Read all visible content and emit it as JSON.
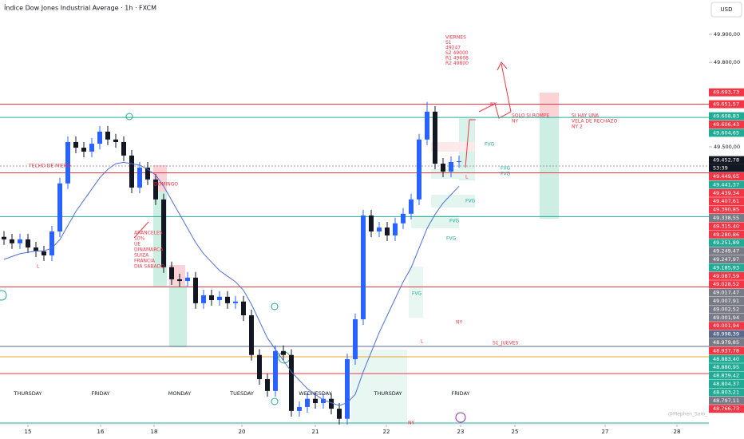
{
  "chart_data": {
    "type": "candlestick",
    "title": "Índice Dow Jones Industrial Average · 1h · FXCM",
    "currency": "USD",
    "up_color": "#2962ff",
    "down_color": "#131722",
    "ma_color": "#4f6fd8",
    "x": [
      0,
      1,
      2,
      3,
      4,
      5,
      6,
      7,
      8,
      9,
      10,
      11,
      12,
      13,
      14,
      15,
      16,
      17,
      18,
      19,
      20,
      21,
      22,
      23,
      24,
      25,
      26,
      27,
      28,
      29,
      30,
      31,
      32,
      33,
      34,
      35,
      36,
      37,
      38,
      39,
      40,
      41,
      42,
      43,
      44,
      45,
      46,
      47,
      48,
      49,
      50,
      51,
      52,
      53,
      54,
      55,
      56,
      57
    ],
    "open": [
      49180,
      49171,
      49157,
      49171,
      49142,
      49128,
      49114,
      49199,
      49370,
      49517,
      49497,
      49483,
      49511,
      49554,
      49526,
      49517,
      49469,
      49355,
      49426,
      49384,
      49313,
      49072,
      49029,
      49023,
      49035,
      48944,
      48972,
      48955,
      48967,
      48944,
      48950,
      48901,
      48760,
      48674,
      48632,
      48774,
      48760,
      48561,
      48575,
      48604,
      48589,
      48604,
      48569,
      48533,
      48745,
      48887,
      49256,
      49199,
      49213,
      49185,
      49228,
      49262,
      49313,
      49526,
      49625,
      49440,
      49412,
      49446
    ],
    "high": [
      49200,
      49191,
      49191,
      49191,
      49162,
      49148,
      49219,
      49390,
      49537,
      49537,
      49517,
      49531,
      49574,
      49574,
      49546,
      49537,
      49489,
      49446,
      49446,
      49404,
      49333,
      49092,
      49049,
      49055,
      49055,
      48992,
      48992,
      48987,
      48987,
      48970,
      48970,
      48921,
      48780,
      48694,
      48794,
      48794,
      48780,
      48595,
      48624,
      48624,
      48624,
      48624,
      48589,
      48765,
      48907,
      49276,
      49276,
      49233,
      49233,
      49248,
      49282,
      49333,
      49546,
      49660,
      49645,
      49460,
      49466,
      49469
    ],
    "low": [
      49151,
      49137,
      49137,
      49122,
      49108,
      49094,
      49094,
      49179,
      49350,
      49477,
      49463,
      49463,
      49491,
      49506,
      49497,
      49449,
      49335,
      49335,
      49364,
      49293,
      49052,
      49009,
      49003,
      49003,
      48924,
      48924,
      48935,
      48935,
      48924,
      48924,
      48881,
      48740,
      48654,
      48612,
      48612,
      48740,
      48541,
      48541,
      48555,
      48569,
      48569,
      48549,
      48513,
      48513,
      48725,
      48867,
      49179,
      49179,
      49165,
      49165,
      49208,
      49242,
      49293,
      49506,
      49420,
      49392,
      49392,
      49426
    ],
    "close": [
      49171,
      49157,
      49171,
      49142,
      49128,
      49114,
      49199,
      49370,
      49517,
      49497,
      49483,
      49511,
      49554,
      49526,
      49517,
      49469,
      49355,
      49426,
      49384,
      49313,
      49072,
      49029,
      49023,
      49035,
      48944,
      48972,
      48955,
      48967,
      48944,
      48950,
      48901,
      48760,
      48674,
      48632,
      48774,
      48760,
      48561,
      48575,
      48604,
      48589,
      48604,
      48569,
      48533,
      48745,
      48887,
      49256,
      49199,
      49213,
      49185,
      49228,
      49262,
      49313,
      49526,
      49625,
      49440,
      49412,
      49446,
      49449
    ],
    "ma": [
      49100,
      49110,
      49120,
      49125,
      49130,
      49130,
      49140,
      49170,
      49220,
      49270,
      49310,
      49350,
      49390,
      49420,
      49440,
      49445,
      49440,
      49435,
      49420,
      49400,
      49360,
      49310,
      49260,
      49210,
      49160,
      49120,
      49090,
      49060,
      49040,
      49020,
      48990,
      48940,
      48880,
      48820,
      48780,
      48740,
      48700,
      48670,
      48640,
      48620,
      48600,
      48590,
      48580,
      48590,
      48620,
      48700,
      48770,
      48840,
      48900,
      48960,
      49020,
      49070,
      49140,
      49210,
      49260,
      49300,
      49330,
      49360
    ],
    "xlim": [
      -0.5,
      88.3
    ],
    "ylim": [
      48518,
      50022
    ],
    "xticks": [
      {
        "value": 3,
        "label": "15"
      },
      {
        "value": 12.1,
        "label": "16"
      },
      {
        "value": 18.8,
        "label": "18"
      },
      {
        "value": 29.8,
        "label": "20"
      },
      {
        "value": 39,
        "label": "21"
      },
      {
        "value": 47.9,
        "label": "22"
      },
      {
        "value": 57.2,
        "label": "23"
      },
      {
        "value": 64,
        "label": "25"
      },
      {
        "value": 75.3,
        "label": "27"
      },
      {
        "value": 84.3,
        "label": "28"
      }
    ],
    "yticks": [
      {
        "value": 49900,
        "label": "49.900,00"
      },
      {
        "value": 49800,
        "label": "49.800,00"
      },
      {
        "value": 49500,
        "label": "49.500,00"
      }
    ],
    "day_labels": [
      "THURSDAY",
      "FRIDAY",
      "MONDAY",
      "TUESDAY",
      "WEDNESDAY",
      "THURSDAY",
      "FRIDAY"
    ],
    "countdown": "53:39",
    "price_tags": [
      {
        "value": 49693.73,
        "label": "49.693,73",
        "color": "#f23645"
      },
      {
        "value": 49651.57,
        "label": "49.651,57",
        "color": "#f23645",
        "line": true
      },
      {
        "value": 49608.83,
        "label": "49.608,83",
        "color": "#22ab94"
      },
      {
        "value": 49606.43,
        "label": "49.606,43",
        "color": "#f23645"
      },
      {
        "value": 49604.65,
        "label": "49.604,65",
        "color": "#22ab94",
        "line": true
      },
      {
        "value": 49452.78,
        "label": "49.452,78",
        "color": "#131722"
      },
      {
        "value": 49449.65,
        "label": "49.449,65",
        "color": "#f23645"
      },
      {
        "value": 49441.37,
        "label": "49.441,37",
        "color": "#22ab94"
      },
      {
        "value": 49439.34,
        "label": "49.439,34",
        "color": "#f23645"
      },
      {
        "value": 49407.61,
        "label": "49.407,61",
        "color": "#f23645",
        "line": true
      },
      {
        "value": 49390.85,
        "label": "49.390,85",
        "color": "#f23645"
      },
      {
        "value": 49338.55,
        "label": "49.338,55",
        "color": "#787b86"
      },
      {
        "value": 49315.4,
        "label": "49.315,40",
        "color": "#f23645"
      },
      {
        "value": 49280.86,
        "label": "49.280,86",
        "color": "#f23645"
      },
      {
        "value": 49251.89,
        "label": "49.251,89",
        "color": "#22ab94",
        "line": true
      },
      {
        "value": 49249.47,
        "label": "49.249,47",
        "color": "#787b86"
      },
      {
        "value": 49247.97,
        "label": "49.247,97",
        "color": "#787b86"
      },
      {
        "value": 49185.93,
        "label": "49.185,93",
        "color": "#22ab94"
      },
      {
        "value": 49087.59,
        "label": "49.087,59",
        "color": "#f23645"
      },
      {
        "value": 49028.52,
        "label": "49.028,52",
        "color": "#f23645"
      },
      {
        "value": 49017.47,
        "label": "49.017,47",
        "color": "#787b86"
      },
      {
        "value": 49007.91,
        "label": "49.007,91",
        "color": "#787b86"
      },
      {
        "value": 49002.52,
        "label": "49.002,52",
        "color": "#787b86"
      },
      {
        "value": 49001.94,
        "label": "49.001,94",
        "color": "#787b86"
      },
      {
        "value": 49001.94,
        "label": "49.001,94",
        "color": "#f23645",
        "line": true
      },
      {
        "value": 48998.39,
        "label": "48.998,39",
        "color": "#5b6a8a"
      },
      {
        "value": 48979.85,
        "label": "48.979,85",
        "color": "#787b86"
      },
      {
        "value": 48937.78,
        "label": "48.937,78",
        "color": "#f23645"
      },
      {
        "value": 48883.4,
        "label": "48.883,40",
        "color": "#22ab94"
      },
      {
        "value": 48880.95,
        "label": "48.880,95",
        "color": "#22ab94"
      },
      {
        "value": 48839.42,
        "label": "48.839,42",
        "color": "#22ab94"
      },
      {
        "value": 48804.37,
        "label": "48.804,37",
        "color": "#22ab94"
      },
      {
        "value": 48803.21,
        "label": "48.803,21",
        "color": "#22ab94"
      },
      {
        "value": 48797.11,
        "label": "48.797,11",
        "color": "#787b86"
      },
      {
        "value": 48766.73,
        "label": "48.766,73",
        "color": "#f23645"
      }
    ],
    "annotations": {
      "viernes": [
        "VIERNES",
        "S1",
        "49247",
        "S2 49000",
        "R1 49608",
        "R2 49800"
      ],
      "ny_top": "NY",
      "solo_si_rompe": [
        "SOLO SI ROMPE",
        "NY"
      ],
      "vela_rechazo": [
        "SI HAY UNA",
        "VELA DE RECHAZO",
        "NY 2"
      ],
      "techo": "TECHO DE MIERO",
      "domingo": "DOMINGO",
      "aranceles": [
        "ARANCELES",
        "10%",
        "UE",
        "DINAMARCA",
        "SUIZA",
        "FRANCIA",
        "DIA SABADO"
      ],
      "fvg": [
        "FVG",
        "FVG",
        "FVG",
        "FVG",
        "FVG",
        "FVG",
        "FVG"
      ],
      "l_marks": [
        "L",
        "L",
        "L"
      ],
      "ny_mid": "NY",
      "ny_bottom": "NY",
      "s1_jueves": "S1_JUEVES",
      "watermark": "@Mephen_Sam_"
    }
  }
}
